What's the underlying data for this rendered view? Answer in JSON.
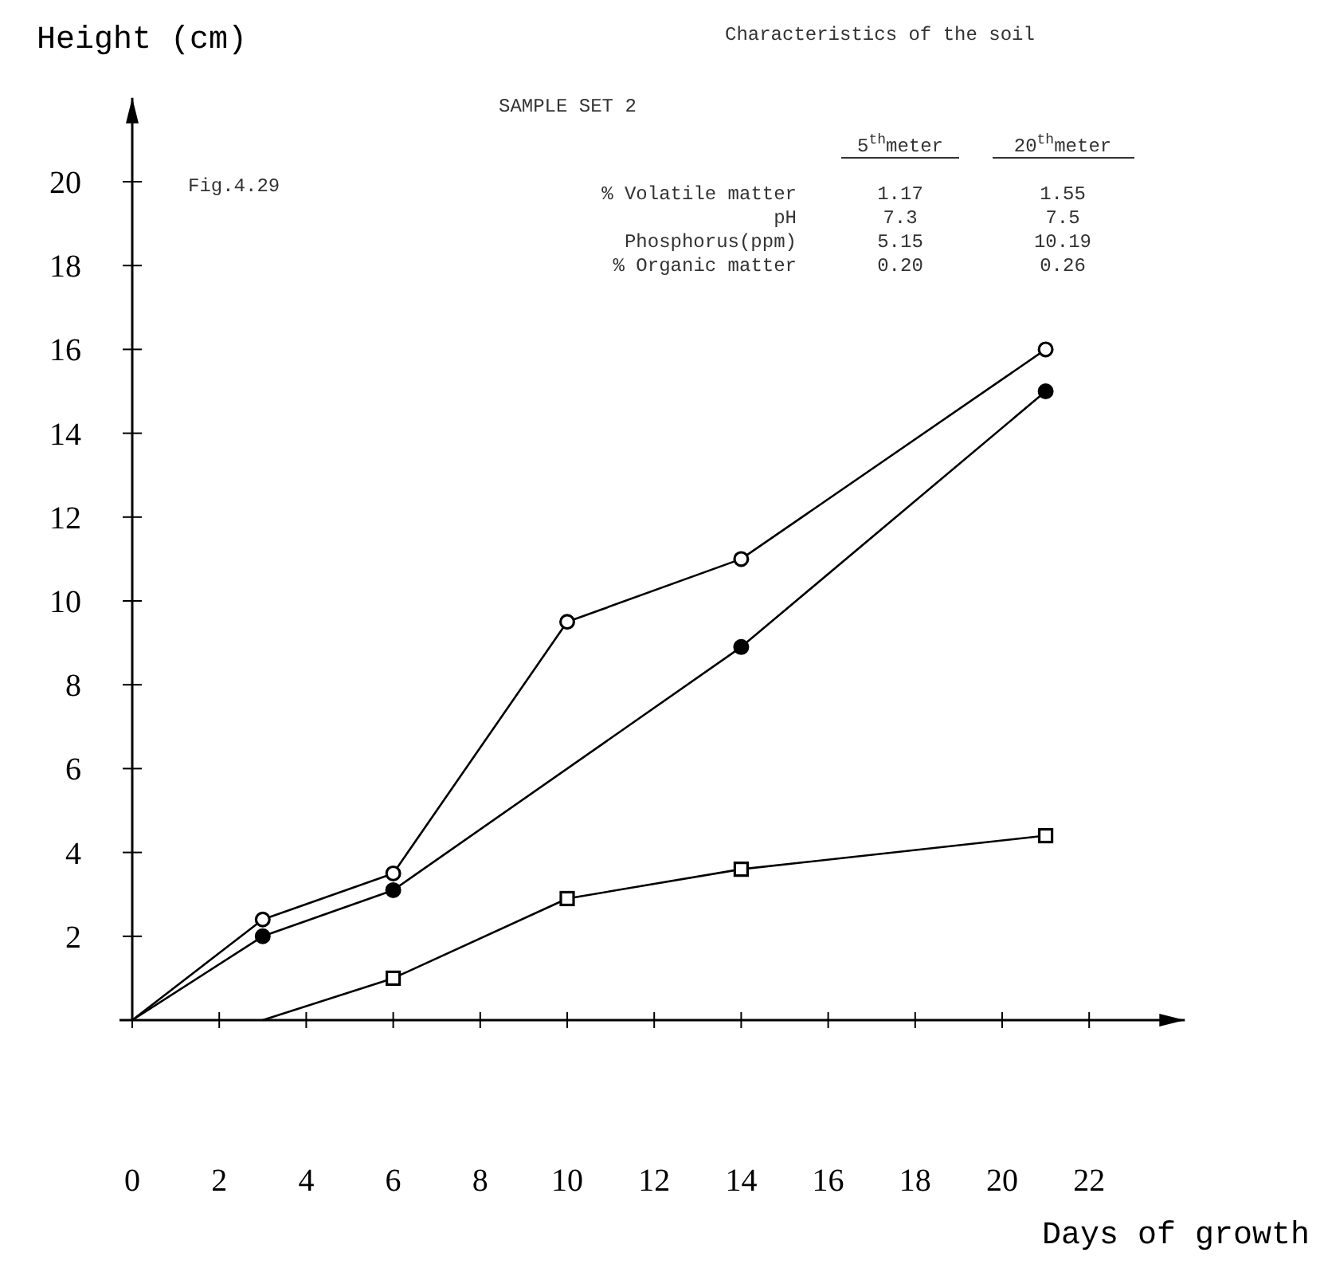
{
  "chart_data": {
    "type": "line",
    "xlabel": "Days of growth",
    "ylabel": "Height (cm)",
    "xlim": [
      0,
      24.2
    ],
    "ylim": [
      0,
      22
    ],
    "xticks": [
      0,
      2,
      4,
      6,
      8,
      10,
      12,
      14,
      16,
      18,
      20,
      22
    ],
    "yticks": [
      2,
      4,
      6,
      8,
      10,
      12,
      14,
      16,
      18,
      20
    ],
    "grid": false,
    "line_style": "solid",
    "series": [
      {
        "color": "#000000",
        "colors": [
          "#ffffff",
          "#ffffff",
          "#ffffff",
          "#ffffff",
          "#ffffff",
          "#ffffff"
        ],
        "marker": "circle",
        "x": [
          0,
          3,
          6,
          10,
          14,
          21
        ],
        "values": [
          0,
          2.4,
          3.5,
          9.5,
          11,
          16
        ]
      },
      {
        "color": "#000000",
        "colors": [
          "#000000",
          "#000000",
          "#000000",
          "#000000",
          "#000000"
        ],
        "marker": "circle",
        "x": [
          0,
          3,
          6,
          14,
          21
        ],
        "values": [
          0,
          2,
          3.1,
          8.9,
          15
        ]
      },
      {
        "color": "#000000",
        "colors": [
          "#ffffff",
          "#ffffff",
          "#ffffff",
          "#ffffff",
          "#ffffff"
        ],
        "marker": "square",
        "x": [
          3,
          6,
          10,
          14,
          21
        ],
        "values": [
          0,
          1,
          2.9,
          3.6,
          4.4
        ]
      }
    ],
    "annotations": [
      "Characteristics of the soil",
      "SAMPLE SET 2",
      "Fig.4.29",
      "5$^{th}$meter",
      "20$^{th}$meter",
      "% Volatile matter",
      "1.17",
      "1.55",
      "pH",
      "7.3",
      "7.5",
      "Phosphorus(ppm)",
      "5.15",
      "10.19",
      "% Organic matter",
      "0.20",
      "0.26"
    ]
  }
}
